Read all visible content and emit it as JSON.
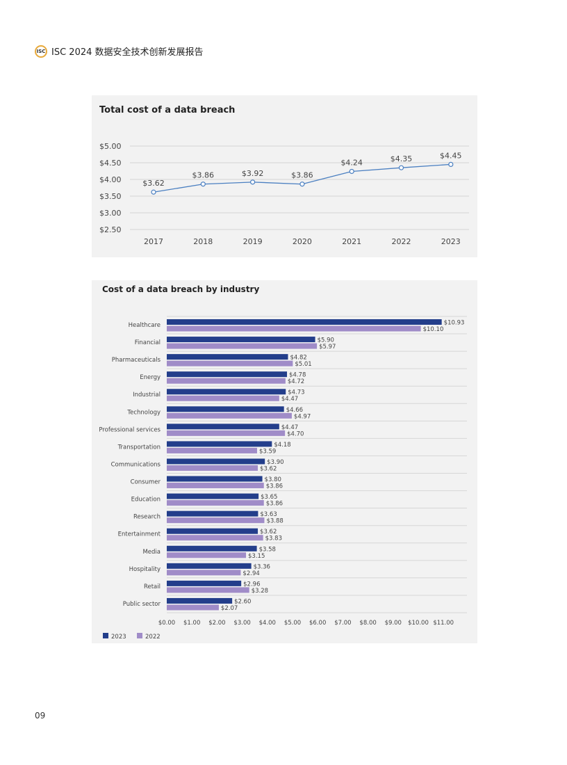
{
  "header": {
    "logo_text": "ISC",
    "title": "ISC 2024 数据安全技术创新发展报告"
  },
  "page_number": "09",
  "colors": {
    "line": "#4a7fc1",
    "bar_2023": "#233e8b",
    "bar_2022": "#a08cc8"
  },
  "chart_data": [
    {
      "type": "line",
      "title": "Total cost of a data breach",
      "x": [
        "2017",
        "2018",
        "2019",
        "2020",
        "2021",
        "2022",
        "2023"
      ],
      "values": [
        3.62,
        3.86,
        3.92,
        3.86,
        4.24,
        4.35,
        4.45
      ],
      "labels": [
        "$3.62",
        "$3.86",
        "$3.92",
        "$3.86",
        "$4.24",
        "$4.35",
        "$4.45"
      ],
      "ylim": [
        2.5,
        5.0
      ],
      "yticks": [
        "$5.00",
        "$4.50",
        "$4.00",
        "$3.50",
        "$3.00",
        "$2.50"
      ],
      "grid": true
    },
    {
      "type": "bar",
      "orientation": "horizontal",
      "title": "Cost of a data breach by industry",
      "categories": [
        "Healthcare",
        "Financial",
        "Pharmaceuticals",
        "Energy",
        "Industrial",
        "Technology",
        "Professional services",
        "Transportation",
        "Communications",
        "Consumer",
        "Education",
        "Research",
        "Entertainment",
        "Media",
        "Hospitality",
        "Retail",
        "Public sector"
      ],
      "series": [
        {
          "name": "2023",
          "values": [
            10.93,
            5.9,
            4.82,
            4.78,
            4.73,
            4.66,
            4.47,
            4.18,
            3.9,
            3.8,
            3.65,
            3.63,
            3.62,
            3.58,
            3.36,
            2.96,
            2.6
          ]
        },
        {
          "name": "2022",
          "values": [
            10.1,
            5.97,
            5.01,
            4.72,
            4.47,
            4.97,
            4.7,
            3.59,
            3.62,
            3.86,
            3.86,
            3.88,
            3.83,
            3.15,
            2.94,
            3.28,
            2.07
          ]
        }
      ],
      "xlim": [
        0,
        11
      ],
      "xticks": [
        "$0.00",
        "$1.00",
        "$2.00",
        "$3.00",
        "$4.00",
        "$5.00",
        "$6.00",
        "$7.00",
        "$8.00",
        "$9.00",
        "$10.00",
        "$11.00"
      ],
      "legend": "bottom-left"
    }
  ]
}
